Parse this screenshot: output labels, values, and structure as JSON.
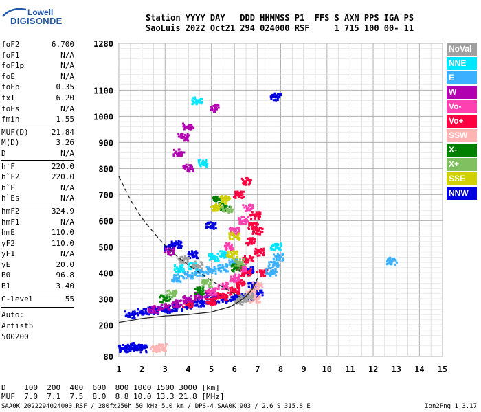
{
  "logo": {
    "line1": "Lowell",
    "line2": "DIGISONDE"
  },
  "header": {
    "line1": "Station YYYY DAY   DDD HHMMSS P1  FFS S AXN PPS IGA PS",
    "line2": "SaoLuis 2022 Oct21 294 024000 RSF     1 715 100 00- 11"
  },
  "params": [
    {
      "name": "foF2",
      "value": "6.700"
    },
    {
      "name": "foF1",
      "value": "N/A"
    },
    {
      "name": "foF1p",
      "value": "N/A"
    },
    {
      "name": "foE",
      "value": "N/A"
    },
    {
      "name": "foEp",
      "value": "0.35"
    },
    {
      "name": "fxI",
      "value": "6.20"
    },
    {
      "name": "foEs",
      "value": "N/A"
    },
    {
      "name": "fmin",
      "value": "1.55"
    },
    {
      "name": "MUF(D)",
      "value": "21.84"
    },
    {
      "name": "M(D)",
      "value": "3.26"
    },
    {
      "name": "D",
      "value": "N/A"
    },
    {
      "name": "h`F",
      "value": "220.0"
    },
    {
      "name": "h`F2",
      "value": "220.0"
    },
    {
      "name": "h`E",
      "value": "N/A"
    },
    {
      "name": "h`Es",
      "value": "N/A"
    },
    {
      "name": "hmF2",
      "value": "324.9"
    },
    {
      "name": "hmF1",
      "value": "N/A"
    },
    {
      "name": "hmE",
      "value": "110.0"
    },
    {
      "name": "yF2",
      "value": "110.0"
    },
    {
      "name": "yF1",
      "value": "N/A"
    },
    {
      "name": "yE",
      "value": "20.0"
    },
    {
      "name": "B0",
      "value": "96.8"
    },
    {
      "name": "B1",
      "value": "3.40"
    },
    {
      "name": "C-level",
      "value": "55"
    }
  ],
  "auto": {
    "line1": "Auto:",
    "line2": "Artist5",
    "line3": "500200"
  },
  "legend": [
    {
      "label": "NoVal",
      "color": "#a0a0a0"
    },
    {
      "label": "NNE",
      "color": "#00e6ff"
    },
    {
      "label": "E",
      "color": "#3ab0ff"
    },
    {
      "label": "W",
      "color": "#b000b0"
    },
    {
      "label": "Vo-",
      "color": "#ff40b0"
    },
    {
      "label": "Vo+",
      "color": "#ff0040"
    },
    {
      "label": "SSW",
      "color": "#ffb4b4"
    },
    {
      "label": "X-",
      "color": "#008000"
    },
    {
      "label": "X+",
      "color": "#80c060"
    },
    {
      "label": "SSE",
      "color": "#d0d000"
    },
    {
      "label": "NNW",
      "color": "#0000e0"
    }
  ],
  "dtable": {
    "line1": "D    100  200  400  600  800 1000 1500 3000 [km]",
    "line2": "MUF  7.0  7.1  7.5  8.0  8.8 10.0 13.3 21.8 [MHz]"
  },
  "footer": {
    "left": "SAA0K_2022294024000.RSF / 280fx256h 50 kHz 5.0 km / DPS-4 SAA0K 903 / 2.6 S 315.8 E",
    "right": "Ion2Png 1.3.17"
  },
  "chart_data": {
    "type": "scatter",
    "x_ticks": [
      1,
      2,
      3,
      4,
      5,
      6,
      7,
      8,
      9,
      10,
      11,
      12,
      13,
      14,
      15
    ],
    "y_ticks": [
      80,
      200,
      300,
      400,
      500,
      600,
      700,
      800,
      900,
      1000,
      1100,
      1280
    ],
    "xlim": [
      1,
      15
    ],
    "ylim": [
      80,
      1280
    ],
    "grid": true,
    "legend_position": "right",
    "traces": [
      {
        "name": "NNW",
        "points": [
          [
            1.5,
            240
          ],
          [
            2,
            250
          ],
          [
            2.5,
            255
          ],
          [
            3,
            260
          ],
          [
            3.5,
            265
          ],
          [
            4,
            275
          ],
          [
            4.5,
            285
          ],
          [
            5,
            295
          ],
          [
            5.5,
            300
          ],
          [
            6,
            305
          ],
          [
            6.5,
            310
          ],
          [
            7,
            320
          ],
          [
            1.2,
            110
          ],
          [
            1.5,
            115
          ],
          [
            2.0,
            110
          ],
          [
            1.8,
            118
          ],
          [
            3.2,
            500
          ],
          [
            3.5,
            510
          ],
          [
            4.2,
            470
          ],
          [
            5.0,
            580
          ],
          [
            7.8,
            1075
          ],
          [
            6.6,
            410
          ],
          [
            6.8,
            350
          ]
        ]
      },
      {
        "name": "Vo+",
        "points": [
          [
            4,
            280
          ],
          [
            5,
            290
          ],
          [
            5.5,
            310
          ],
          [
            6,
            330
          ],
          [
            6.3,
            360
          ],
          [
            6.5,
            400
          ],
          [
            6.6,
            450
          ],
          [
            6.7,
            520
          ],
          [
            6.8,
            580
          ],
          [
            6.9,
            620
          ],
          [
            7,
            560
          ],
          [
            7.1,
            480
          ],
          [
            7.2,
            400
          ],
          [
            6.2,
            700
          ],
          [
            6.5,
            750
          ]
        ]
      },
      {
        "name": "W",
        "points": [
          [
            2.5,
            260
          ],
          [
            3,
            270
          ],
          [
            3.5,
            280
          ],
          [
            4,
            300
          ],
          [
            4.5,
            310
          ],
          [
            5,
            320
          ],
          [
            3.2,
            480
          ],
          [
            4,
            800
          ],
          [
            3.8,
            920
          ],
          [
            3.6,
            860
          ],
          [
            5.2,
            1030
          ],
          [
            4.0,
            960
          ]
        ]
      },
      {
        "name": "Vo-",
        "points": [
          [
            5,
            330
          ],
          [
            5.5,
            350
          ],
          [
            6,
            380
          ],
          [
            6.3,
            420
          ],
          [
            5.8,
            500
          ],
          [
            6.0,
            560
          ],
          [
            6.4,
            600
          ],
          [
            6.6,
            650
          ]
        ]
      },
      {
        "name": "E",
        "points": [
          [
            3.5,
            380
          ],
          [
            4,
            390
          ],
          [
            4.5,
            400
          ],
          [
            5,
            410
          ],
          [
            5.5,
            420
          ],
          [
            6,
            440
          ],
          [
            7.7,
            430
          ],
          [
            7.9,
            460
          ],
          [
            7.6,
            400
          ],
          [
            12.8,
            445
          ]
        ]
      },
      {
        "name": "NNE",
        "points": [
          [
            3.6,
            415
          ],
          [
            4.2,
            425
          ],
          [
            5.1,
            460
          ],
          [
            5.6,
            470
          ],
          [
            7.8,
            500
          ],
          [
            4.6,
            820
          ],
          [
            4.4,
            1060
          ]
        ]
      },
      {
        "name": "X-",
        "points": [
          [
            3,
            300
          ],
          [
            4.5,
            330
          ],
          [
            5.3,
            680
          ],
          [
            5.6,
            650
          ],
          [
            6.1,
            420
          ]
        ]
      },
      {
        "name": "X+",
        "points": [
          [
            3.3,
            320
          ],
          [
            4.8,
            360
          ],
          [
            5.7,
            640
          ],
          [
            6.2,
            440
          ]
        ]
      },
      {
        "name": "SSE",
        "points": [
          [
            5.2,
            650
          ],
          [
            5.6,
            680
          ],
          [
            6.0,
            540
          ],
          [
            5.9,
            470
          ]
        ]
      },
      {
        "name": "SSW",
        "points": [
          [
            6.7,
            320
          ],
          [
            6.9,
            300
          ],
          [
            7.0,
            350
          ],
          [
            2.6,
            110
          ],
          [
            2.9,
            115
          ]
        ]
      },
      {
        "name": "NoVal",
        "points": [
          [
            6.2,
            290
          ],
          [
            6.4,
            300
          ],
          [
            6.6,
            310
          ],
          [
            3.8,
            450
          ],
          [
            4.4,
            430
          ]
        ]
      }
    ],
    "curves": [
      {
        "style": "solid",
        "points": [
          [
            1,
            210
          ],
          [
            2,
            225
          ],
          [
            3,
            235
          ],
          [
            4,
            240
          ],
          [
            5,
            250
          ],
          [
            5.8,
            270
          ],
          [
            6.2,
            290
          ],
          [
            6.5,
            310
          ],
          [
            6.8,
            340
          ],
          [
            7.0,
            380
          ]
        ]
      },
      {
        "style": "dashed",
        "points": [
          [
            1,
            770
          ],
          [
            1.5,
            680
          ],
          [
            2,
            610
          ],
          [
            2.5,
            555
          ],
          [
            3,
            505
          ],
          [
            3.5,
            465
          ],
          [
            4,
            430
          ],
          [
            4.5,
            400
          ],
          [
            5,
            370
          ],
          [
            5.5,
            345
          ],
          [
            6,
            320
          ],
          [
            6.3,
            305
          ]
        ]
      }
    ]
  }
}
